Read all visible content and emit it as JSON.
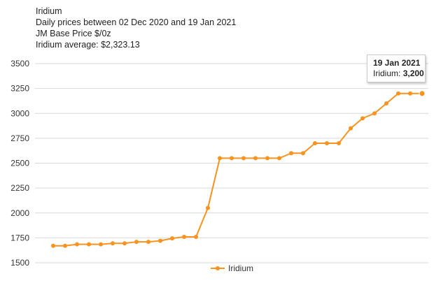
{
  "header": {
    "line1": "Iridium",
    "line2": "Daily prices between 02 Dec 2020 and 19 Jan 2021",
    "line3": "JM Base Price $/0z",
    "line4": "Iridium average: $2,323.13"
  },
  "tooltip": {
    "date": "19 Jan 2021",
    "series": "Iridium:",
    "value": "3,200"
  },
  "colors": {
    "series": "#f7931e",
    "grid": "#d9d9d9"
  },
  "chart_data": {
    "type": "line",
    "ylim": [
      1500,
      3500
    ],
    "yticks": [
      "1500",
      "1750",
      "2000",
      "2250",
      "2500",
      "2750",
      "3000",
      "3250",
      "3500"
    ],
    "grid": true,
    "legend": "bottom",
    "series": [
      {
        "name": "Iridium",
        "values": [
          1670,
          1670,
          1685,
          1685,
          1685,
          1695,
          1695,
          1710,
          1710,
          1720,
          1745,
          1760,
          1760,
          2050,
          2550,
          2550,
          2550,
          2550,
          2550,
          2550,
          2600,
          2600,
          2700,
          2700,
          2700,
          2850,
          2950,
          3000,
          3100,
          3200,
          3200,
          3200
        ]
      }
    ]
  }
}
